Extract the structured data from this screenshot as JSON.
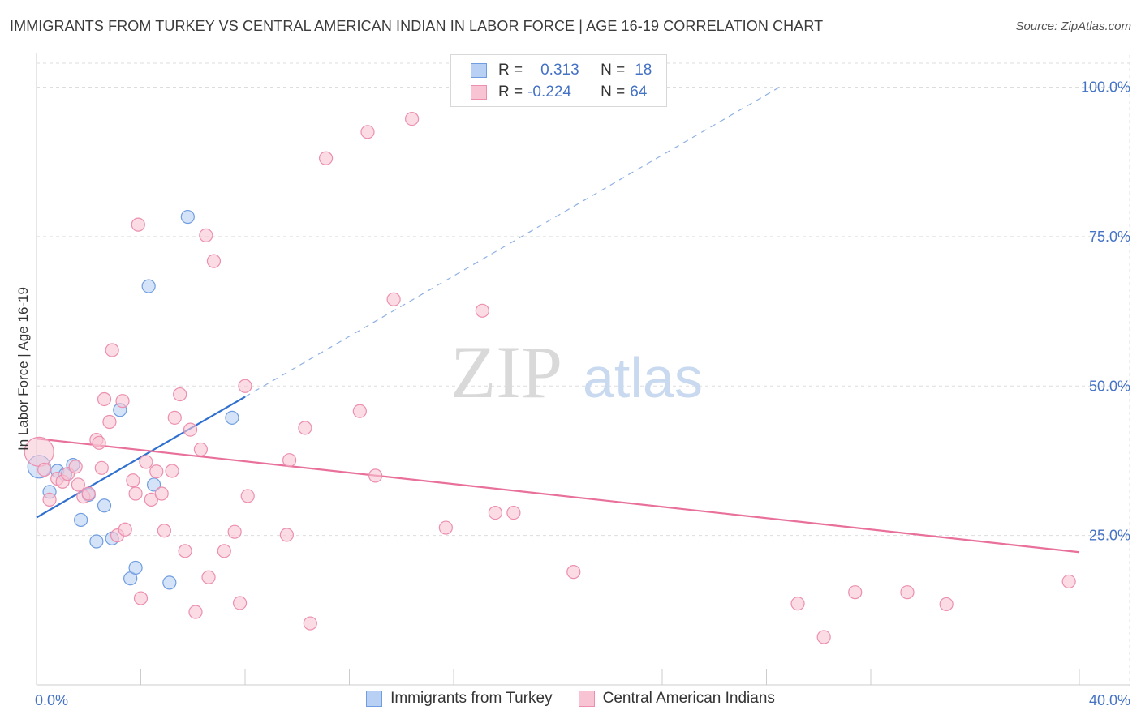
{
  "title": "IMMIGRANTS FROM TURKEY VS CENTRAL AMERICAN INDIAN IN LABOR FORCE | AGE 16-19 CORRELATION CHART",
  "source": "Source: ZipAtlas.com",
  "watermark": {
    "zip": "ZIP",
    "atlas": "atlas"
  },
  "legend": {
    "rows": [
      {
        "r_label": "R =",
        "r_value": "0.313",
        "n_label": "N =",
        "n_value": "18"
      },
      {
        "r_label": "R =",
        "r_value": "-0.224",
        "n_label": "N =",
        "n_value": "64"
      }
    ]
  },
  "colors": {
    "blue_fill": "#b8d0f3",
    "blue_stroke": "#6f9de0",
    "blue_line": "#2f6fcf",
    "pink_fill": "#f8c4d4",
    "pink_stroke": "#ec8fae",
    "pink_line": "#e8709a",
    "accent_text": "#4472c4",
    "grid": "#dddddd"
  },
  "chart_data": {
    "type": "scatter",
    "title": "IMMIGRANTS FROM TURKEY VS CENTRAL AMERICAN INDIAN IN LABOR FORCE | AGE 16-19 CORRELATION CHART",
    "xlabel": "",
    "ylabel": "In Labor Force | Age 16-19",
    "xlim": [
      0,
      40
    ],
    "ylim": [
      0,
      104
    ],
    "x_tick_labels": [
      "0.0%",
      "40.0%"
    ],
    "y_ticks": [
      25,
      50,
      75,
      100
    ],
    "y_tick_labels": [
      "25.0%",
      "50.0%",
      "75.0%",
      "100.0%"
    ],
    "grid": true,
    "legend_position": "top-center",
    "series": [
      {
        "name": "Immigrants from Turkey",
        "color": "blue",
        "r": 0.313,
        "n": 18,
        "trend": {
          "x0": 0,
          "y0": 28.0,
          "x1": 8.0,
          "y1": 48.2,
          "dashed_to_x": 28.5,
          "dashed_to_y": 100
        },
        "points": [
          [
            0.1,
            36.5
          ],
          [
            0.5,
            32.3
          ],
          [
            0.8,
            35.8
          ],
          [
            1.1,
            35.2
          ],
          [
            1.4,
            36.8
          ],
          [
            1.7,
            27.6
          ],
          [
            2.0,
            31.8
          ],
          [
            2.3,
            24.0
          ],
          [
            2.6,
            30.0
          ],
          [
            2.9,
            24.5
          ],
          [
            3.2,
            46.0
          ],
          [
            3.6,
            17.8
          ],
          [
            3.8,
            19.6
          ],
          [
            4.3,
            66.7
          ],
          [
            4.5,
            33.5
          ],
          [
            5.1,
            17.1
          ],
          [
            5.8,
            78.3
          ],
          [
            7.5,
            44.7
          ]
        ]
      },
      {
        "name": "Central American Indians",
        "color": "pink",
        "r": -0.224,
        "n": 64,
        "trend": {
          "x0": 0,
          "y0": 41.2,
          "x1": 40,
          "y1": 22.2
        },
        "points": [
          [
            0.1,
            39.0
          ],
          [
            0.3,
            36.0
          ],
          [
            0.5,
            31.0
          ],
          [
            0.8,
            34.5
          ],
          [
            1.0,
            34.0
          ],
          [
            1.2,
            35.3
          ],
          [
            1.5,
            36.5
          ],
          [
            1.6,
            33.5
          ],
          [
            1.8,
            31.5
          ],
          [
            2.0,
            32.0
          ],
          [
            2.3,
            41.0
          ],
          [
            2.4,
            40.5
          ],
          [
            2.5,
            36.3
          ],
          [
            2.6,
            47.8
          ],
          [
            2.8,
            44.0
          ],
          [
            2.9,
            56.0
          ],
          [
            3.1,
            25.0
          ],
          [
            3.3,
            47.5
          ],
          [
            3.4,
            26.0
          ],
          [
            3.7,
            34.2
          ],
          [
            3.8,
            32.0
          ],
          [
            3.9,
            77.0
          ],
          [
            4.0,
            14.5
          ],
          [
            4.2,
            37.3
          ],
          [
            4.4,
            31.0
          ],
          [
            4.6,
            35.7
          ],
          [
            4.8,
            32.0
          ],
          [
            4.9,
            25.8
          ],
          [
            5.2,
            35.8
          ],
          [
            5.3,
            44.7
          ],
          [
            5.5,
            48.6
          ],
          [
            5.7,
            22.4
          ],
          [
            5.9,
            42.7
          ],
          [
            6.1,
            12.2
          ],
          [
            6.3,
            39.4
          ],
          [
            6.5,
            75.2
          ],
          [
            6.6,
            18.0
          ],
          [
            6.8,
            70.9
          ],
          [
            7.2,
            22.4
          ],
          [
            7.6,
            25.6
          ],
          [
            7.8,
            13.7
          ],
          [
            8.0,
            50.0
          ],
          [
            8.1,
            31.6
          ],
          [
            9.6,
            25.1
          ],
          [
            9.7,
            37.6
          ],
          [
            10.3,
            43.0
          ],
          [
            10.5,
            10.3
          ],
          [
            11.1,
            88.1
          ],
          [
            12.4,
            45.8
          ],
          [
            12.7,
            92.5
          ],
          [
            13.7,
            64.5
          ],
          [
            14.4,
            94.7
          ],
          [
            15.7,
            26.3
          ],
          [
            17.1,
            62.6
          ],
          [
            17.6,
            28.8
          ],
          [
            18.3,
            28.8
          ],
          [
            29.2,
            13.6
          ],
          [
            30.2,
            8.0
          ],
          [
            31.4,
            15.5
          ],
          [
            33.4,
            15.5
          ],
          [
            34.9,
            13.5
          ],
          [
            39.6,
            17.3
          ],
          [
            20.6,
            18.9
          ],
          [
            13.0,
            35.0
          ]
        ]
      }
    ]
  },
  "bottom_legend": {
    "items": [
      {
        "label": "Immigrants from Turkey",
        "color": "blue"
      },
      {
        "label": "Central American Indians",
        "color": "pink"
      }
    ]
  }
}
